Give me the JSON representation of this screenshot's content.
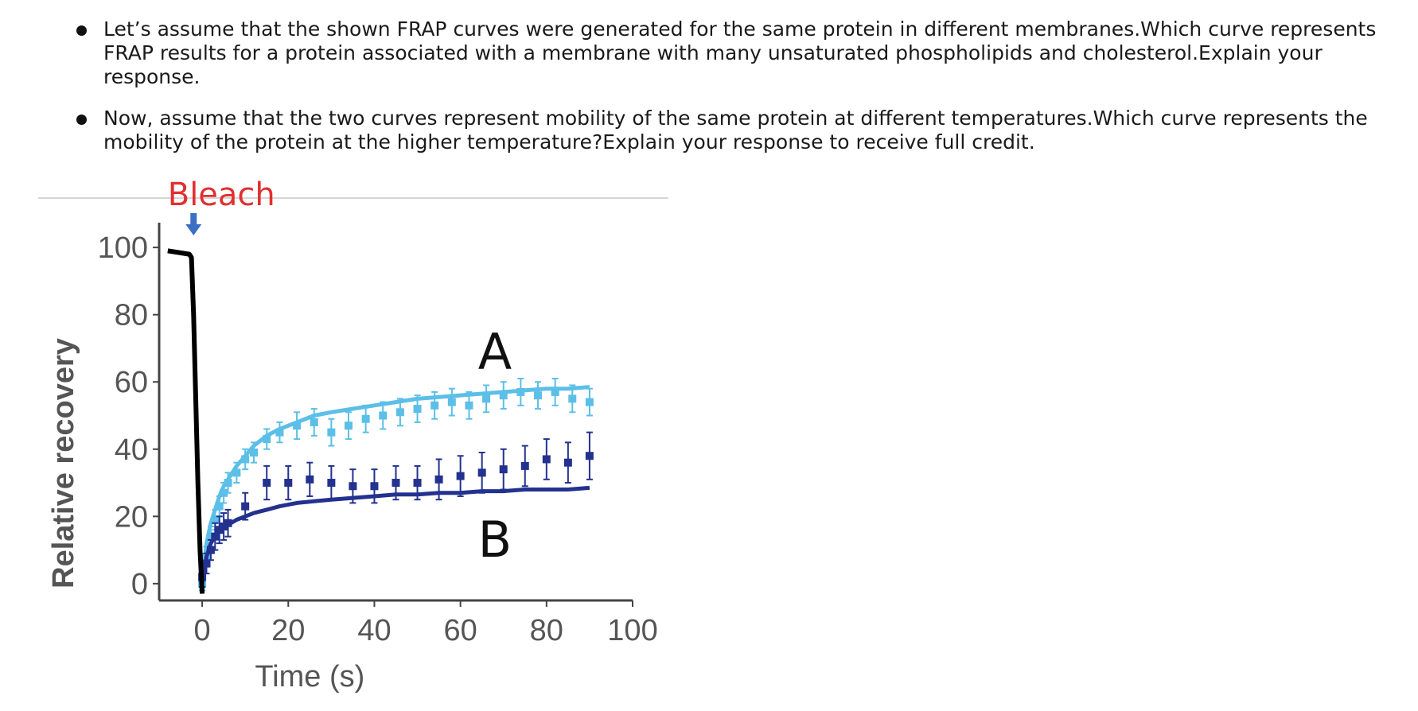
{
  "questions": [
    "Let’s assume that the shown FRAP curves were generated for the same protein in different membranes.Which curve represents FRAP results for a protein associated with a membrane with many unsaturated phospholipids and cholesterol.Explain your response.",
    "Now, assume that the two curves represent mobility of the same protein at different temperatures.Which curve represents the mobility of the protein at the higher temperature?Explain your response to receive full credit."
  ],
  "chart_data": {
    "type": "line",
    "xlabel": "Time (s)",
    "ylabel": "Relative recovery",
    "xlim": [
      -10,
      100
    ],
    "ylim": [
      -5,
      105
    ],
    "xticks": [
      0,
      20,
      40,
      60,
      80,
      100
    ],
    "yticks": [
      0,
      20,
      40,
      60,
      80,
      100
    ],
    "bleach_label": "Bleach",
    "bleach_time": -2,
    "colors": {
      "A": "#5bbfe8",
      "B": "#23318f",
      "prebleach": "#000000",
      "bleach": "#e03030",
      "arrow": "#3b6fc4"
    },
    "prebleach": {
      "x": [
        -8,
        -3,
        -2.5,
        -2,
        -1.5,
        -1,
        -0.5,
        0
      ],
      "y": [
        99,
        98,
        97,
        80,
        55,
        30,
        10,
        -3
      ]
    },
    "series": [
      {
        "name": "A",
        "fit": {
          "x": [
            0,
            1,
            2,
            3,
            4,
            5,
            6,
            8,
            10,
            12,
            15,
            18,
            22,
            26,
            30,
            35,
            40,
            45,
            50,
            55,
            60,
            65,
            70,
            75,
            80,
            85,
            90
          ],
          "y": [
            0,
            12,
            18,
            22,
            26,
            29,
            31,
            35,
            38,
            41,
            44,
            46,
            48,
            50,
            51,
            52,
            53,
            54,
            55,
            55.5,
            56,
            56.5,
            57,
            57.5,
            58,
            58,
            58.5
          ]
        },
        "points": {
          "x": [
            0,
            1,
            2,
            3,
            4,
            5,
            6,
            8,
            10,
            12,
            15,
            18,
            22,
            26,
            30,
            34,
            38,
            42,
            46,
            50,
            54,
            58,
            62,
            66,
            70,
            74,
            78,
            82,
            86,
            90
          ],
          "y": [
            0,
            8,
            14,
            19,
            23,
            27,
            30,
            33,
            37,
            39,
            43,
            45,
            47,
            48,
            45,
            47,
            49,
            50,
            51,
            52,
            53,
            54,
            53,
            55,
            56,
            57,
            56,
            57,
            55,
            54
          ]
        },
        "errors": [
          2,
          3,
          3,
          3,
          3,
          3,
          3,
          3,
          3,
          3,
          3,
          3,
          4,
          4,
          4,
          4,
          4,
          4,
          4,
          4,
          4,
          4,
          4,
          4,
          4,
          4,
          4,
          4,
          4,
          4
        ]
      },
      {
        "name": "B",
        "fit": {
          "x": [
            0,
            1,
            2,
            3,
            4,
            5,
            6,
            8,
            10,
            12,
            15,
            18,
            22,
            26,
            30,
            35,
            40,
            45,
            50,
            55,
            60,
            65,
            70,
            75,
            80,
            85,
            90
          ],
          "y": [
            0,
            8,
            12,
            14,
            15.5,
            16.5,
            17.5,
            19,
            20,
            21,
            22,
            23,
            24,
            24.5,
            25,
            25.5,
            26,
            26.5,
            26.5,
            27,
            27,
            27.5,
            27.5,
            28,
            28,
            28,
            28.5
          ]
        },
        "points": {
          "x": [
            0,
            1,
            2,
            3,
            4,
            5,
            6,
            10,
            15,
            20,
            25,
            30,
            35,
            40,
            45,
            50,
            55,
            60,
            65,
            70,
            75,
            80,
            85,
            90
          ],
          "y": [
            2,
            6,
            10,
            14,
            16,
            17,
            18,
            23,
            30,
            30,
            31,
            30,
            29,
            29,
            30,
            30,
            31,
            32,
            33,
            34,
            35,
            37,
            36,
            38
          ]
        },
        "errors": [
          3,
          3,
          3,
          4,
          4,
          4,
          4,
          4,
          5,
          5,
          5,
          5,
          5,
          5,
          5,
          5,
          6,
          6,
          6,
          6,
          6,
          6,
          6,
          7
        ]
      }
    ]
  }
}
